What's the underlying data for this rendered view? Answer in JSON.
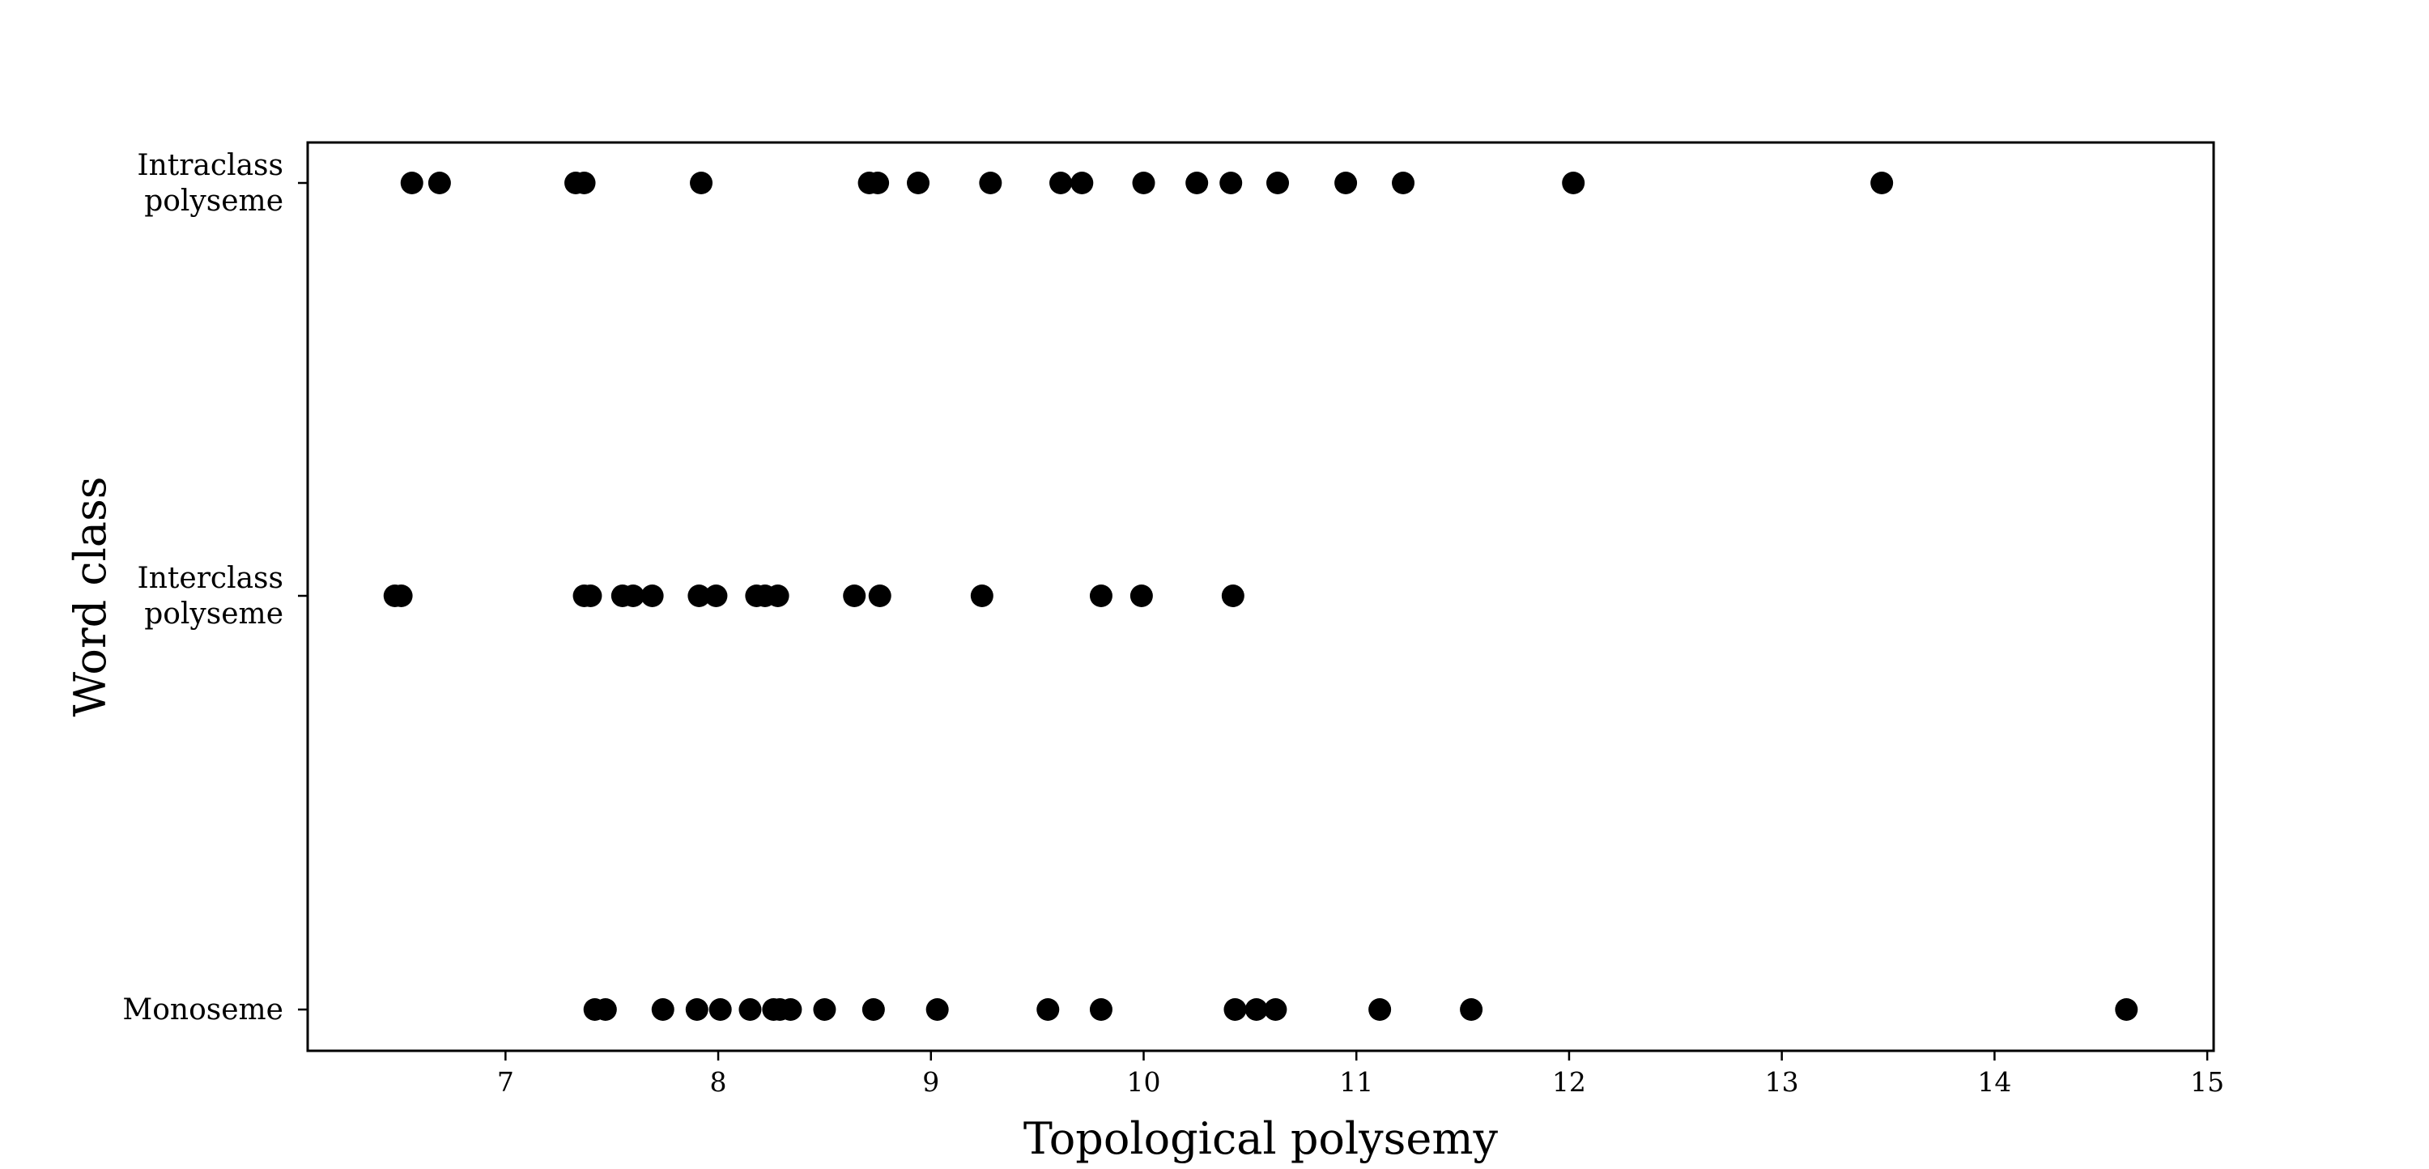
{
  "chart_data": {
    "type": "scatter",
    "title": "",
    "xlabel": "Topological polysemy",
    "ylabel": "Word class",
    "xlim": [
      6.07,
      15.03
    ],
    "xticks": [
      7,
      8,
      9,
      10,
      11,
      12,
      13,
      14,
      15
    ],
    "categories": [
      [
        "Intraclass",
        "polyseme"
      ],
      [
        "Interclass",
        "polyseme"
      ],
      [
        "Monoseme"
      ]
    ],
    "legend": "none",
    "grid": false,
    "marker_color": "#000000",
    "series": [
      {
        "category_index": 0,
        "x": [
          6.56,
          6.69,
          7.33,
          7.37,
          7.92,
          8.71,
          8.75,
          8.94,
          9.28,
          9.61,
          9.71,
          10.0,
          10.25,
          10.41,
          10.63,
          10.95,
          11.22,
          12.02,
          13.47
        ]
      },
      {
        "category_index": 1,
        "x": [
          6.48,
          6.51,
          7.37,
          7.4,
          7.55,
          7.6,
          7.69,
          7.91,
          7.99,
          8.18,
          8.22,
          8.28,
          8.64,
          8.76,
          9.24,
          9.8,
          9.99,
          10.42
        ]
      },
      {
        "category_index": 2,
        "x": [
          7.42,
          7.47,
          7.74,
          7.9,
          8.01,
          8.15,
          8.26,
          8.29,
          8.34,
          8.5,
          8.73,
          9.03,
          9.55,
          9.8,
          10.43,
          10.53,
          10.62,
          11.11,
          11.54,
          14.62
        ]
      }
    ]
  }
}
